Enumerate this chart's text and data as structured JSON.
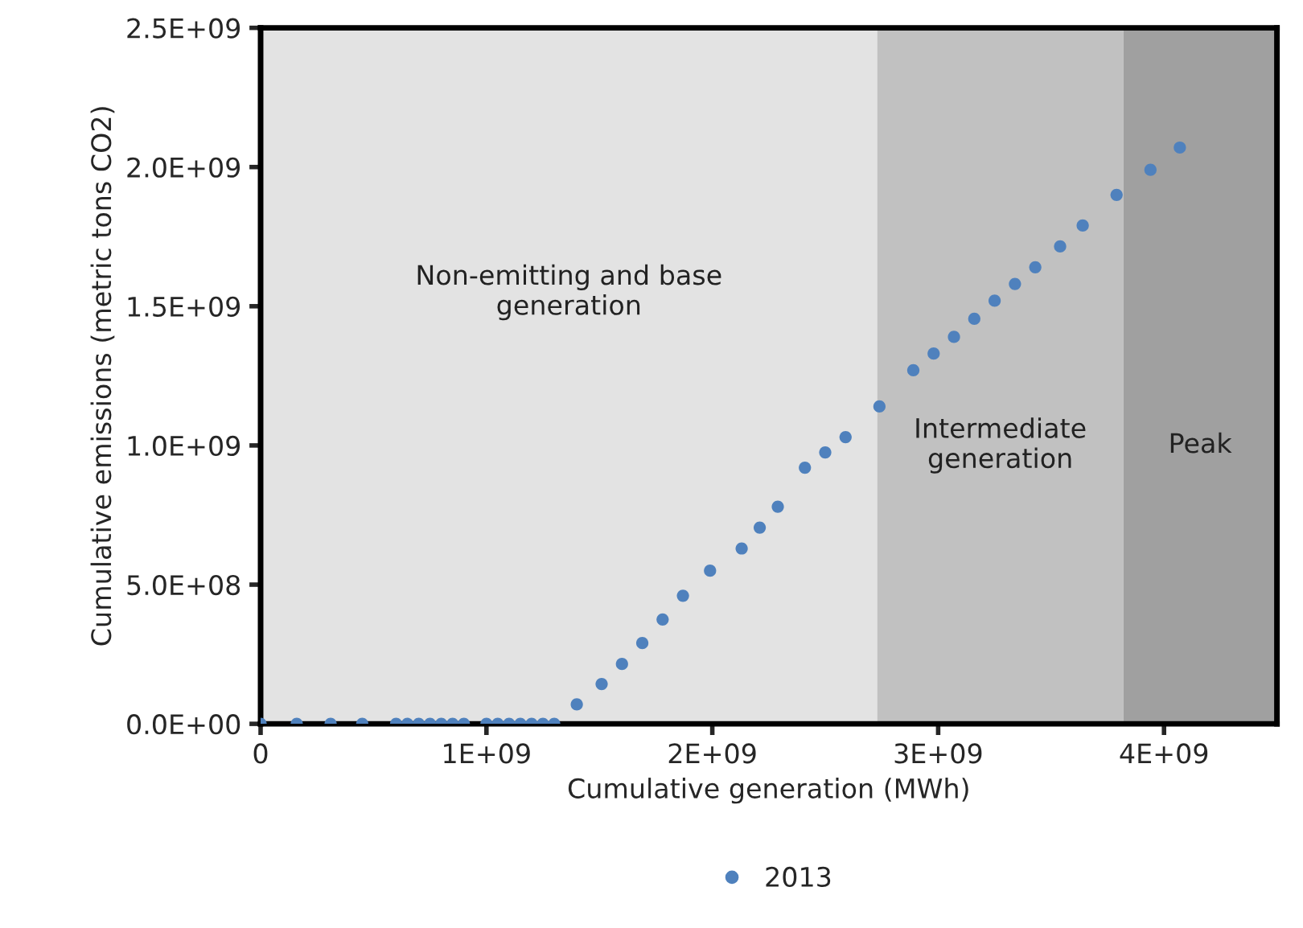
{
  "chart_data": {
    "type": "scatter",
    "xlabel": "Cumulative generation (MWh)",
    "ylabel": "Cumulative emissions (metric tons CO2)",
    "x": [
      0,
      160000000,
      310000000,
      450000000,
      600000000,
      650000000,
      700000000,
      750000000,
      800000000,
      850000000,
      900000000,
      1000000000,
      1050000000,
      1100000000,
      1150000000,
      1200000000,
      1250000000,
      1300000000,
      1400000000,
      1510000000,
      1600000000,
      1690000000,
      1780000000,
      1870000000,
      1990000000,
      2130000000,
      2210000000,
      2290000000,
      2410000000,
      2500000000,
      2590000000,
      2740000000,
      2890000000,
      2980000000,
      3070000000,
      3160000000,
      3250000000,
      3340000000,
      3430000000,
      3540000000,
      3640000000,
      3790000000,
      3940000000,
      4070000000
    ],
    "series": [
      {
        "name": "2013",
        "color": "#4f81bd",
        "values": [
          0,
          0,
          0,
          0,
          0,
          0,
          0,
          0,
          0,
          0,
          0,
          0,
          0,
          0,
          0,
          0,
          0,
          0,
          70000000,
          143000000,
          215000000,
          290000000,
          375000000,
          460000000,
          550000000,
          630000000,
          705000000,
          780000000,
          920000000,
          975000000,
          1030000000,
          1140000000,
          1270000000,
          1330000000,
          1390000000,
          1455000000,
          1520000000,
          1580000000,
          1640000000,
          1715000000,
          1790000000,
          1900000000,
          1990000000,
          2070000000
        ]
      }
    ],
    "xlim": [
      0,
      4500000000
    ],
    "xticks": [
      0,
      {
        "value": 1000000000,
        "label": "1E+09"
      },
      {
        "value": 2000000000,
        "label": "2E+09"
      },
      {
        "value": 3000000000,
        "label": "3E+09"
      },
      {
        "value": 4000000000,
        "label": "4E+09"
      }
    ],
    "ylim": [
      0,
      2500000000
    ],
    "yticks": [
      {
        "value": 0,
        "label": "0.0E+00"
      },
      {
        "value": 500000000,
        "label": "5.0E+08"
      },
      {
        "value": 1000000000,
        "label": "1.0E+09"
      },
      {
        "value": 1500000000,
        "label": "1.5E+09"
      },
      {
        "value": 2000000000,
        "label": "2.0E+09"
      },
      {
        "value": 2500000000,
        "label": "2.5E+09"
      }
    ],
    "bands": [
      {
        "axis": "x",
        "from": 0,
        "to": 2730000000,
        "label": "Non-emitting and base\ngeneration",
        "color": "#e3e3e3"
      },
      {
        "axis": "x",
        "from": 2730000000,
        "to": 3820000000,
        "label": "Intermediate\ngeneration",
        "color": "#c1c1c1"
      },
      {
        "axis": "x",
        "from": 3820000000,
        "to": 4500000000,
        "label": "Peak",
        "color": "#a0a0a0"
      }
    ],
    "marker": "circle",
    "grid": false,
    "legend": "bottom"
  }
}
